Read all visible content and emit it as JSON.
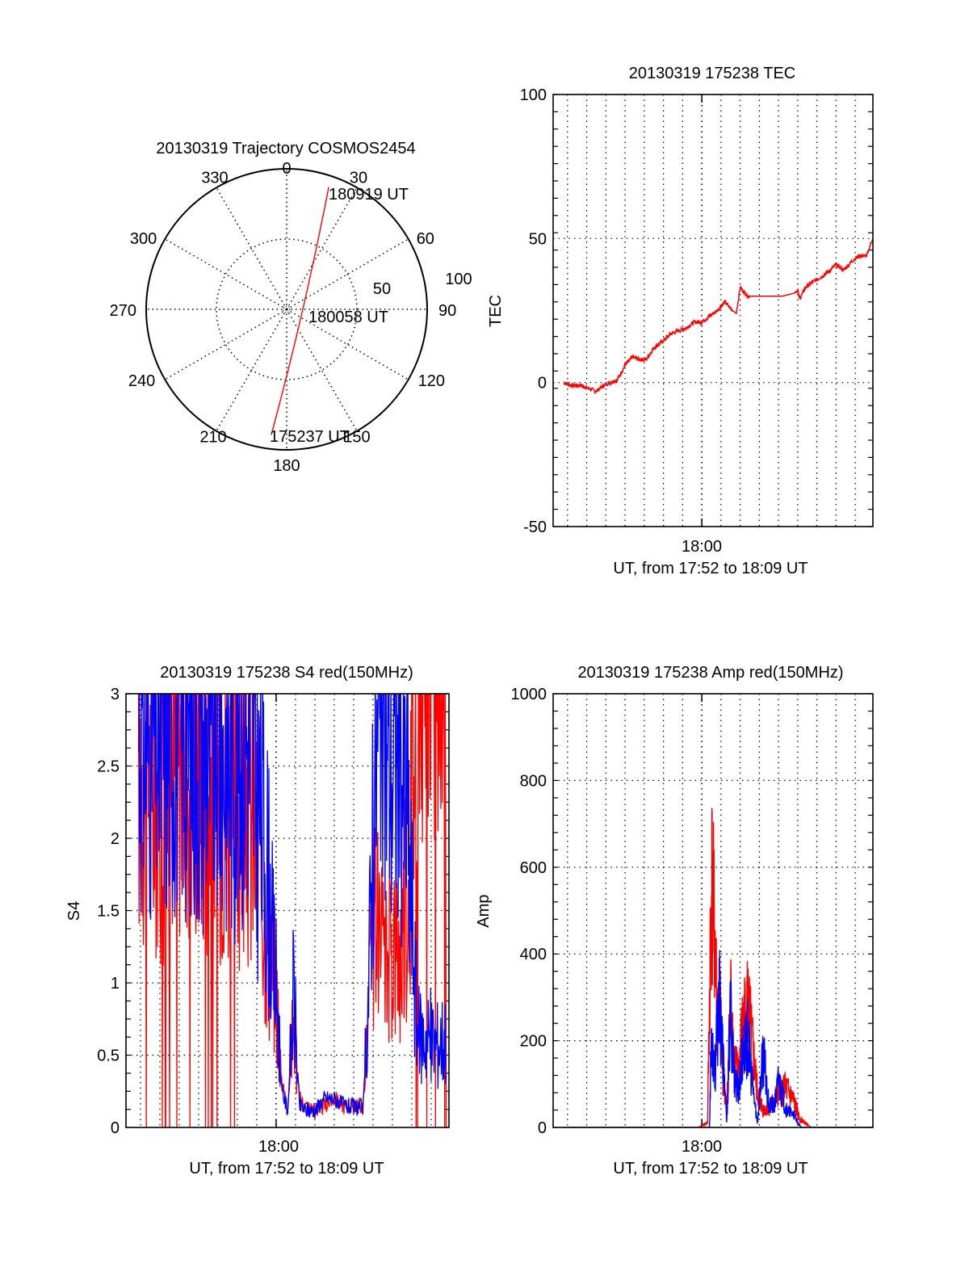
{
  "figure": {
    "panels": [
      "trajectory",
      "tec",
      "s4",
      "amp"
    ]
  },
  "chart_data": [
    {
      "type": "polar",
      "title": "20130319 Trajectory COSMOS2454",
      "angle_labels": [
        "0",
        "30",
        "60",
        "90",
        "120",
        "150",
        "180",
        "210",
        "240",
        "270",
        "300",
        "330"
      ],
      "radial_labels": [
        "50",
        "100"
      ],
      "radial_range": [
        0,
        100
      ],
      "grid": true,
      "series": [
        {
          "name": "trajectory",
          "color": "#ff0000",
          "points": [
            {
              "azimuth": 187,
              "radius": 90,
              "label": "175237 UT"
            },
            {
              "azimuth": 192,
              "radius": 60
            },
            {
              "azimuth": 200,
              "radius": 40
            },
            {
              "azimuth": 115,
              "radius": 16,
              "label": "180058 UT"
            },
            {
              "azimuth": 42,
              "radius": 25
            },
            {
              "azimuth": 25,
              "radius": 55
            },
            {
              "azimuth": 19,
              "radius": 92,
              "label": "180919 UT"
            }
          ]
        }
      ],
      "annotations": [
        "175237 UT",
        "180058 UT",
        "180919 UT"
      ]
    },
    {
      "type": "line",
      "title": "20130319 175238 TEC",
      "xlabel": "UT, from 17:52 to 18:09 UT",
      "ylabel": "TEC",
      "xtick_labels": [
        "18:00"
      ],
      "ytick_labels": [
        "-50",
        "0",
        "50",
        "100"
      ],
      "ylim": [
        -50,
        100
      ],
      "xlim_minutes_from_1800": [
        -7.75,
        8.92
      ],
      "grid": true,
      "series": [
        {
          "name": "TEC",
          "color": "#ff0000",
          "x": [
            -7.2,
            -6.8,
            -6.3,
            -5.9,
            -5.5,
            -5.1,
            -4.8,
            -4.4,
            -4.0,
            -3.6,
            -3.3,
            -2.9,
            -2.5,
            -2.1,
            -1.6,
            -1.2,
            -0.8,
            -0.4,
            0.0,
            0.4,
            0.8,
            1.2,
            1.6,
            1.8,
            2.0,
            2.4,
            3.0,
            3.6,
            4.2,
            4.8,
            5.0,
            5.1,
            5.4,
            5.8,
            6.3,
            6.7,
            7.0,
            7.4,
            7.8,
            8.2,
            8.6,
            8.9
          ],
          "y": [
            0,
            -1,
            -1,
            -2,
            -3,
            -1,
            0,
            1,
            6,
            9,
            8,
            8,
            12,
            14,
            17,
            18,
            19,
            21,
            21,
            23,
            25,
            28,
            25,
            24,
            33,
            30,
            30,
            30,
            30,
            31,
            32,
            29,
            33,
            35,
            37,
            39,
            41,
            39,
            42,
            44,
            44,
            50
          ]
        }
      ]
    },
    {
      "type": "line",
      "title": "20130319 175238 S4 red(150MHz)",
      "xlabel": "UT, from 17:52 to 18:09 UT",
      "ylabel": "S4",
      "xtick_labels": [
        "18:00"
      ],
      "ytick_labels": [
        "0",
        "0.5",
        "1",
        "1.5",
        "2",
        "2.5",
        "3"
      ],
      "ylim": [
        0,
        3
      ],
      "xlim_minutes_from_1800": [
        -7.75,
        8.92
      ],
      "grid": true,
      "series": [
        {
          "name": "red",
          "color": "#ff0000",
          "x": [
            -7.1,
            -6.0,
            -5.0,
            -4.0,
            -3.0,
            -2.0,
            -1.5,
            -1.0,
            -0.5,
            -0.2,
            0.0,
            0.3,
            0.6,
            0.9,
            1.2,
            1.5,
            2.0,
            2.5,
            3.0,
            3.5,
            4.0,
            4.5,
            4.8,
            5.0,
            5.3,
            5.6,
            6.0,
            6.4,
            6.8,
            7.3,
            7.8,
            8.3,
            8.8
          ],
          "y": [
            2.4,
            2.2,
            2.5,
            2.4,
            2.3,
            2.1,
            2.2,
            1.9,
            1.4,
            1.1,
            0.9,
            0.3,
            0.15,
            0.7,
            0.2,
            0.15,
            0.12,
            0.15,
            0.2,
            0.15,
            0.15,
            0.15,
            0.8,
            1.4,
            1.2,
            1.0,
            1.3,
            1.1,
            1.6,
            3.0,
            3.0,
            3.0,
            3.0
          ]
        },
        {
          "name": "blue",
          "color": "#0000ff",
          "x": [
            -7.1,
            -6.0,
            -5.0,
            -4.0,
            -3.0,
            -2.0,
            -1.5,
            -1.0,
            -0.5,
            -0.2,
            0.0,
            0.3,
            0.6,
            0.9,
            1.2,
            1.5,
            2.0,
            2.5,
            3.0,
            3.5,
            4.0,
            4.5,
            4.8,
            5.0,
            5.3,
            5.6,
            6.0,
            6.4,
            6.8,
            7.3,
            7.8,
            8.3,
            8.8
          ],
          "y": [
            2.6,
            2.5,
            2.6,
            2.5,
            2.5,
            2.4,
            2.6,
            2.2,
            1.8,
            1.2,
            0.9,
            0.25,
            0.12,
            0.9,
            0.15,
            0.12,
            0.12,
            0.2,
            0.2,
            0.15,
            0.14,
            0.14,
            1.0,
            2.2,
            2.5,
            2.6,
            2.4,
            2.5,
            2.0,
            0.6,
            0.6,
            0.55,
            0.6
          ]
        }
      ]
    },
    {
      "type": "line",
      "title": "20130319 175238 Amp red(150MHz)",
      "xlabel": "UT, from 17:52 to 18:09 UT",
      "ylabel": "Amp",
      "xtick_labels": [
        "18:00"
      ],
      "ytick_labels": [
        "0",
        "200",
        "400",
        "600",
        "800",
        "1000"
      ],
      "ylim": [
        0,
        1000
      ],
      "xlim_minutes_from_1800": [
        -7.75,
        8.92
      ],
      "grid": true,
      "series": [
        {
          "name": "red",
          "color": "#ff0000",
          "x": [
            -7.2,
            -0.2,
            0.3,
            0.5,
            0.7,
            0.8,
            0.9,
            1.1,
            1.3,
            1.5,
            1.7,
            1.9,
            2.1,
            2.4,
            2.6,
            2.9,
            3.2,
            3.6,
            4.0,
            4.4,
            4.8,
            5.1,
            5.4,
            5.7,
            8.9
          ],
          "y": [
            0,
            0,
            10,
            570,
            420,
            250,
            300,
            130,
            40,
            300,
            150,
            120,
            220,
            290,
            200,
            80,
            40,
            50,
            80,
            90,
            60,
            20,
            10,
            0,
            0
          ]
        },
        {
          "name": "blue",
          "color": "#0000ff",
          "x": [
            -7.2,
            -0.2,
            0.4,
            0.5,
            0.7,
            0.9,
            1.1,
            1.3,
            1.5,
            1.7,
            1.9,
            2.1,
            2.4,
            2.6,
            2.9,
            3.2,
            3.5,
            3.8,
            4.0,
            4.4,
            4.8,
            5.0,
            5.2,
            8.9
          ],
          "y": [
            0,
            0,
            0,
            220,
            130,
            310,
            170,
            10,
            270,
            120,
            80,
            160,
            210,
            110,
            10,
            170,
            50,
            50,
            110,
            40,
            30,
            10,
            0,
            0
          ]
        }
      ]
    }
  ]
}
